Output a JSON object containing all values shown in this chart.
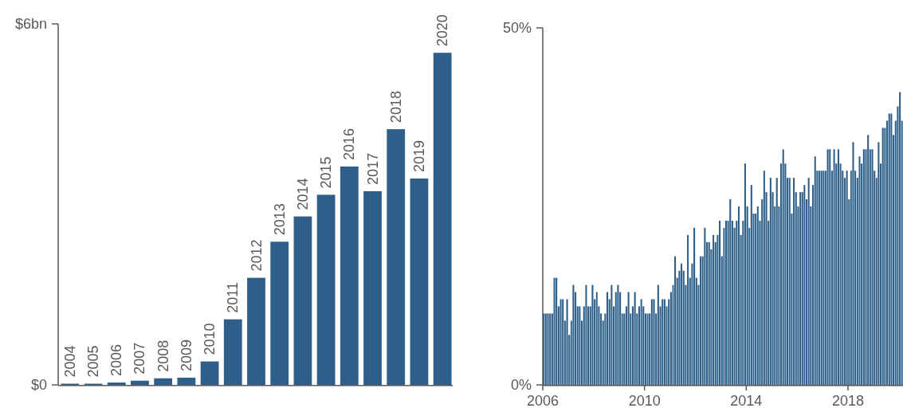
{
  "chart_data": [
    {
      "type": "bar",
      "categories": [
        "2004",
        "2005",
        "2006",
        "2007",
        "2008",
        "2009",
        "2010",
        "2011",
        "2012",
        "2013",
        "2014",
        "2015",
        "2016",
        "2017",
        "2018",
        "2019",
        "2020"
      ],
      "values": [
        0.02,
        0.02,
        0.04,
        0.07,
        0.11,
        0.12,
        0.39,
        1.09,
        1.78,
        2.38,
        2.8,
        3.16,
        3.63,
        3.22,
        4.25,
        3.43,
        5.52
      ],
      "color": "#2e5f8a",
      "ylim": [
        0,
        6
      ],
      "yticks": [
        {
          "value": 0,
          "label": "$0"
        },
        {
          "value": 6,
          "label": "$6bn"
        }
      ],
      "grid": false
    },
    {
      "type": "bar",
      "color": "#2e5f8a",
      "ylim": [
        0,
        50
      ],
      "yticks": [
        {
          "value": 0,
          "label": "0%"
        },
        {
          "value": 50,
          "label": "50%"
        }
      ],
      "xlim": [
        "2006-01",
        "2020-03"
      ],
      "xticks": [
        "2006",
        "2010",
        "2014",
        "2018"
      ],
      "grid": false,
      "x": [
        "2006-01",
        "2006-02",
        "2006-03",
        "2006-04",
        "2006-05",
        "2006-06",
        "2006-07",
        "2006-08",
        "2006-09",
        "2006-10",
        "2006-11",
        "2006-12",
        "2007-01",
        "2007-02",
        "2007-03",
        "2007-04",
        "2007-05",
        "2007-06",
        "2007-07",
        "2007-08",
        "2007-09",
        "2007-10",
        "2007-11",
        "2007-12",
        "2008-01",
        "2008-02",
        "2008-03",
        "2008-04",
        "2008-05",
        "2008-06",
        "2008-07",
        "2008-08",
        "2008-09",
        "2008-10",
        "2008-11",
        "2008-12",
        "2009-01",
        "2009-02",
        "2009-03",
        "2009-04",
        "2009-05",
        "2009-06",
        "2009-07",
        "2009-08",
        "2009-09",
        "2009-10",
        "2009-11",
        "2009-12",
        "2010-01",
        "2010-02",
        "2010-03",
        "2010-04",
        "2010-05",
        "2010-06",
        "2010-07",
        "2010-08",
        "2010-09",
        "2010-10",
        "2010-11",
        "2010-12",
        "2011-01",
        "2011-02",
        "2011-03",
        "2011-04",
        "2011-05",
        "2011-06",
        "2011-07",
        "2011-08",
        "2011-09",
        "2011-10",
        "2011-11",
        "2011-12",
        "2012-01",
        "2012-02",
        "2012-03",
        "2012-04",
        "2012-05",
        "2012-06",
        "2012-07",
        "2012-08",
        "2012-09",
        "2012-10",
        "2012-11",
        "2012-12",
        "2013-01",
        "2013-02",
        "2013-03",
        "2013-04",
        "2013-05",
        "2013-06",
        "2013-07",
        "2013-08",
        "2013-09",
        "2013-10",
        "2013-11",
        "2013-12",
        "2014-01",
        "2014-02",
        "2014-03",
        "2014-04",
        "2014-05",
        "2014-06",
        "2014-07",
        "2014-08",
        "2014-09",
        "2014-10",
        "2014-11",
        "2014-12",
        "2015-01",
        "2015-02",
        "2015-03",
        "2015-04",
        "2015-05",
        "2015-06",
        "2015-07",
        "2015-08",
        "2015-09",
        "2015-10",
        "2015-11",
        "2015-12",
        "2016-01",
        "2016-02",
        "2016-03",
        "2016-04",
        "2016-05",
        "2016-06",
        "2016-07",
        "2016-08",
        "2016-09",
        "2016-10",
        "2016-11",
        "2016-12",
        "2017-01",
        "2017-02",
        "2017-03",
        "2017-04",
        "2017-05",
        "2017-06",
        "2017-07",
        "2017-08",
        "2017-09",
        "2017-10",
        "2017-11",
        "2017-12",
        "2018-01",
        "2018-02",
        "2018-03",
        "2018-04",
        "2018-05",
        "2018-06",
        "2018-07",
        "2018-08",
        "2018-09",
        "2018-10",
        "2018-11",
        "2018-12",
        "2019-01",
        "2019-02",
        "2019-03",
        "2019-04",
        "2019-05",
        "2019-06",
        "2019-07",
        "2019-08",
        "2019-09",
        "2019-10",
        "2019-11",
        "2019-12",
        "2020-01",
        "2020-02"
      ],
      "values": [
        10,
        10,
        10,
        10,
        10,
        15,
        15,
        11,
        12,
        12,
        9,
        12,
        7,
        9,
        14,
        13,
        11,
        11,
        9,
        11,
        14,
        11,
        11,
        14,
        12,
        13,
        11,
        10,
        9,
        10,
        13,
        12,
        14,
        11,
        13,
        14,
        13,
        10,
        10,
        11,
        13,
        10,
        11,
        13,
        10,
        11,
        12,
        11,
        10,
        10,
        10,
        12,
        12,
        10,
        14,
        11,
        12,
        12,
        11,
        12,
        13,
        14,
        18,
        15,
        16,
        17,
        16,
        14,
        21,
        15,
        17,
        22,
        15,
        14,
        18,
        18,
        22,
        20,
        20,
        19,
        21,
        20,
        21,
        23,
        18,
        22,
        23,
        23,
        26,
        23,
        22,
        23,
        25,
        21,
        23,
        31,
        25,
        22,
        28,
        24,
        24,
        25,
        23,
        26,
        30,
        27,
        23,
        29,
        27,
        25,
        29,
        25,
        31,
        33,
        31,
        29,
        29,
        24,
        29,
        27,
        25,
        27,
        27,
        28,
        26,
        29,
        25,
        28,
        32,
        30,
        30,
        30,
        30,
        30,
        33,
        33,
        30,
        33,
        31,
        33,
        31,
        30,
        29,
        30,
        26,
        30,
        34,
        30,
        29,
        32,
        31,
        33,
        33,
        35,
        33,
        33,
        30,
        29,
        34,
        31,
        36,
        36,
        37,
        38,
        38,
        35,
        37,
        39,
        41,
        37
      ]
    }
  ]
}
